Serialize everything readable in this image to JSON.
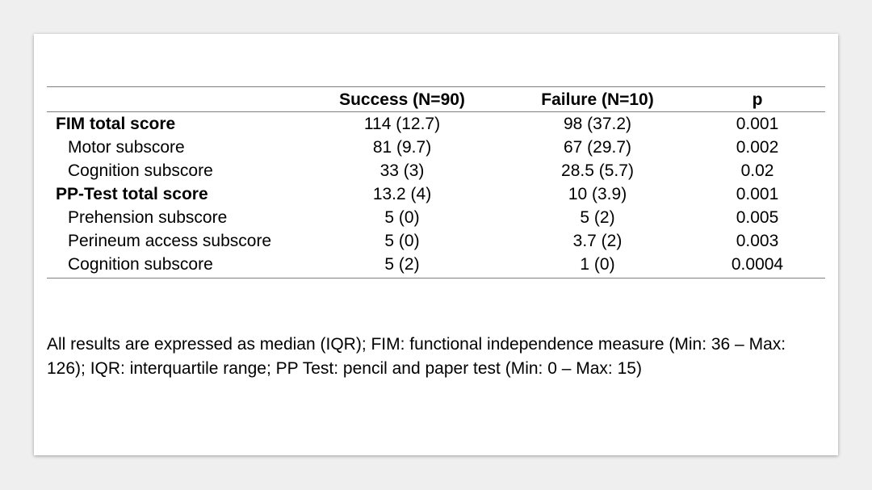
{
  "table": {
    "headers": [
      "",
      "Success (N=90)",
      "Failure (N=10)",
      "p"
    ],
    "rows": [
      {
        "label": "FIM total score",
        "success": "114 (12.7)",
        "failure": "98 (37.2)",
        "p": "0.001"
      },
      {
        "label": "Motor subscore",
        "success": "81 (9.7)",
        "failure": "67 (29.7)",
        "p": "0.002"
      },
      {
        "label": "Cognition subscore",
        "success": "33 (3)",
        "failure": "28.5 (5.7)",
        "p": "0.02"
      },
      {
        "label": "PP-Test total score",
        "success": "13.2 (4)",
        "failure": "10 (3.9)",
        "p": "0.001"
      },
      {
        "label": "Prehension subscore",
        "success": "5 (0)",
        "failure": "5 (2)",
        "p": "0.005"
      },
      {
        "label": "Perineum access subscore",
        "success": "5 (0)",
        "failure": "3.7 (2)",
        "p": "0.003"
      },
      {
        "label": "Cognition subscore",
        "success": "5 (2)",
        "failure": "1 (0)",
        "p": "0.0004"
      }
    ]
  },
  "footnote": "All results are expressed as median (IQR); FIM: functional independence measure (Min: 36 – Max: 126); IQR: interquartile range; PP Test: pencil and paper test (Min: 0 – Max: 15)"
}
